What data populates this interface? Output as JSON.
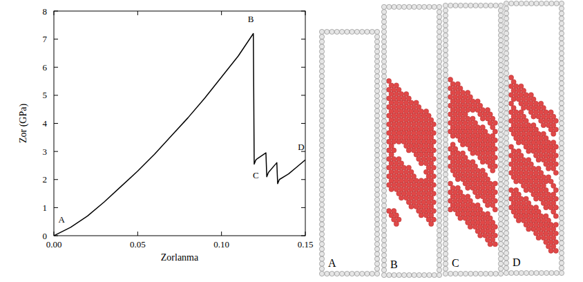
{
  "chart_data": {
    "type": "line",
    "x_label": "Zorlanma",
    "y_label": "Zor (GPa)",
    "x": [
      0,
      0.01,
      0.02,
      0.03,
      0.04,
      0.05,
      0.06,
      0.07,
      0.08,
      0.09,
      0.1,
      0.11,
      0.119,
      0.1195,
      0.1205,
      0.1215,
      0.1265,
      0.127,
      0.128,
      0.133,
      0.1335,
      0.1345,
      0.14,
      0.145,
      0.15
    ],
    "series": [
      {
        "color": "#000000",
        "values": [
          0,
          0.3,
          0.7,
          1.2,
          1.75,
          2.3,
          2.9,
          3.55,
          4.2,
          4.9,
          5.65,
          6.4,
          7.2,
          2.55,
          2.7,
          2.75,
          2.95,
          2.1,
          2.25,
          2.6,
          1.85,
          2.0,
          2.2,
          2.45,
          2.7
        ]
      }
    ],
    "xlim": [
      0,
      0.15
    ],
    "xticks": [
      {
        "value": 0,
        "label": "0.00"
      },
      {
        "value": 0.05,
        "label": "0.05"
      },
      {
        "value": 0.1,
        "label": "0.10"
      },
      {
        "value": 0.15,
        "label": "0.15"
      }
    ],
    "ylim": [
      0,
      8
    ],
    "yticks": [
      0,
      1,
      2,
      3,
      4,
      5,
      6,
      7,
      8
    ],
    "grid": false,
    "annotations": [
      {
        "text": "A",
        "x": 0.0046,
        "y": 0.47
      },
      {
        "text": "B",
        "x": 0.1175,
        "y": 7.6
      },
      {
        "text": "C",
        "x": 0.1205,
        "y": 2.05
      },
      {
        "text": "D",
        "x": 0.1475,
        "y": 3.05
      }
    ]
  },
  "panels": [
    {
      "label": "A"
    },
    {
      "label": "B"
    },
    {
      "label": "C"
    },
    {
      "label": "D"
    }
  ]
}
